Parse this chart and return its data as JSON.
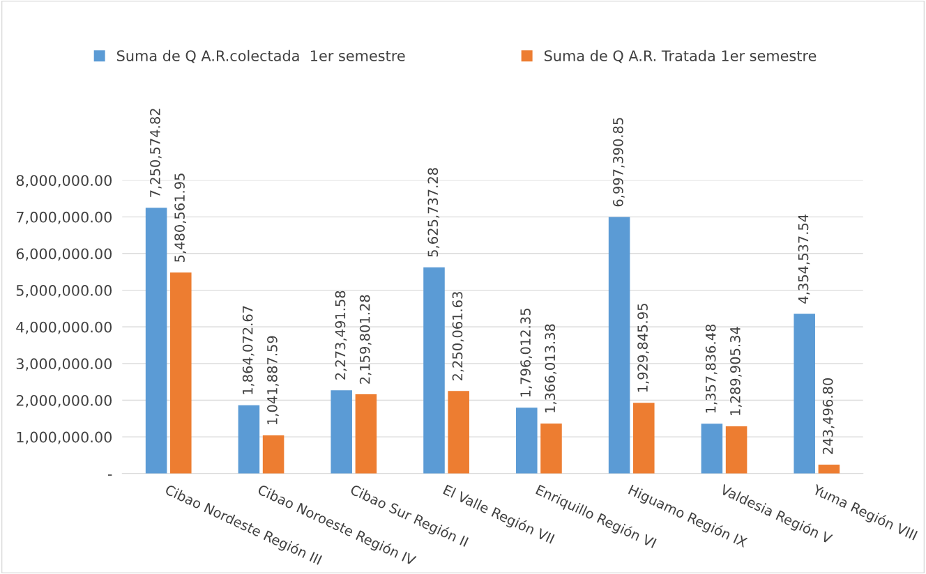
{
  "chart_data": {
    "type": "bar",
    "categories": [
      "Cibao Nordeste Región III",
      "Cibao Noroeste Región IV",
      "Cibao Sur Región II",
      "El Valle Región VII",
      "Enriquillo Región VI",
      "Higuamo Región IX",
      "Valdesia Región V",
      "Yuma Región VIII"
    ],
    "series": [
      {
        "name": "Suma de Q A.R.colectada  1er semestre",
        "color": "#5b9bd5",
        "values": [
          7250574.82,
          1864072.67,
          2273491.58,
          5625737.28,
          1796012.35,
          6997390.85,
          1357836.48,
          4354537.54
        ],
        "value_labels": [
          "7,250,574.82",
          "1,864,072.67",
          "2,273,491.58",
          "5,625,737.28",
          "1,796,012.35",
          "6,997,390.85",
          "1,357,836.48",
          "4,354,537.54"
        ]
      },
      {
        "name": "Suma de Q A.R. Tratada 1er semestre",
        "color": "#ed7d31",
        "values": [
          5480561.95,
          1041887.59,
          2159801.28,
          2250061.63,
          1366013.38,
          1929845.95,
          1289905.34,
          243496.8
        ],
        "value_labels": [
          "5,480,561.95",
          "1,041,887.59",
          "2,159,801.28",
          "2,250,061.63",
          "1,366,013.38",
          "1,929,845.95",
          "1,289,905.34",
          "243,496.80"
        ]
      }
    ],
    "ylim": [
      0,
      8000000
    ],
    "yticks": [
      {
        "value": 0,
        "label": "-"
      },
      {
        "value": 1000000,
        "label": "1,000,000.00"
      },
      {
        "value": 2000000,
        "label": "2,000,000.00"
      },
      {
        "value": 3000000,
        "label": "3,000,000.00"
      },
      {
        "value": 4000000,
        "label": "4,000,000.00"
      },
      {
        "value": 5000000,
        "label": "5,000,000.00"
      },
      {
        "value": 6000000,
        "label": "6,000,000.00"
      },
      {
        "value": 7000000,
        "label": "7,000,000.00"
      },
      {
        "value": 8000000,
        "label": "8,000,000.00"
      }
    ],
    "grid": "y",
    "legend": "top"
  }
}
